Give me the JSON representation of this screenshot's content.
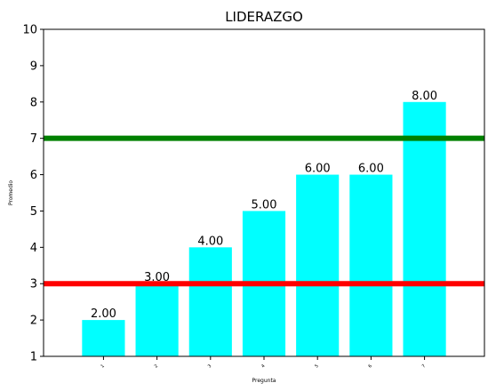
{
  "chart_data": {
    "type": "bar",
    "title": "LIDERAZGO",
    "xlabel": "Pregunta",
    "ylabel": "Promedio",
    "categories": [
      "1",
      "2",
      "3",
      "4",
      "5",
      "6",
      "7"
    ],
    "values": [
      2,
      3,
      4,
      5,
      6,
      6,
      8
    ],
    "value_labels": [
      "2.00",
      "3.00",
      "4.00",
      "5.00",
      "6.00",
      "6.00",
      "8.00"
    ],
    "ylim": [
      1,
      10
    ],
    "yticks": [
      "1",
      "2",
      "3",
      "4",
      "5",
      "6",
      "7",
      "8",
      "9",
      "10"
    ],
    "bar_color": "#00ffff",
    "reference_lines": [
      {
        "value": 7,
        "color": "#008000"
      },
      {
        "value": 3,
        "color": "#ff0000"
      }
    ],
    "grid": false
  }
}
